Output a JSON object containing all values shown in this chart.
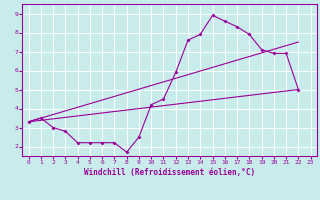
{
  "title": "",
  "xlabel": "Windchill (Refroidissement éolien,°C)",
  "ylabel": "",
  "bg_color": "#c8ecec",
  "line_color": "#990099",
  "grid_color": "#ffffff",
  "xlim": [
    -0.5,
    23.5
  ],
  "ylim": [
    1.5,
    9.5
  ],
  "xticks": [
    0,
    1,
    2,
    3,
    4,
    5,
    6,
    7,
    8,
    9,
    10,
    11,
    12,
    13,
    14,
    15,
    16,
    17,
    18,
    19,
    20,
    21,
    22,
    23
  ],
  "yticks": [
    2,
    3,
    4,
    5,
    6,
    7,
    8,
    9
  ],
  "line1_x": [
    0,
    1,
    2,
    3,
    4,
    5,
    6,
    7,
    8,
    9,
    10,
    11,
    12,
    13,
    14,
    15,
    16,
    17,
    18,
    19,
    20,
    21,
    22
  ],
  "line1_y": [
    3.3,
    3.5,
    3.0,
    2.8,
    2.2,
    2.2,
    2.2,
    2.2,
    1.7,
    2.5,
    4.2,
    4.5,
    5.9,
    7.6,
    7.9,
    8.9,
    8.6,
    8.3,
    7.9,
    7.1,
    6.9,
    6.9,
    5.0
  ],
  "line3_x": [
    0,
    22
  ],
  "line3_y": [
    3.3,
    7.5
  ],
  "line4_x": [
    0,
    22
  ],
  "line4_y": [
    3.3,
    5.0
  ]
}
